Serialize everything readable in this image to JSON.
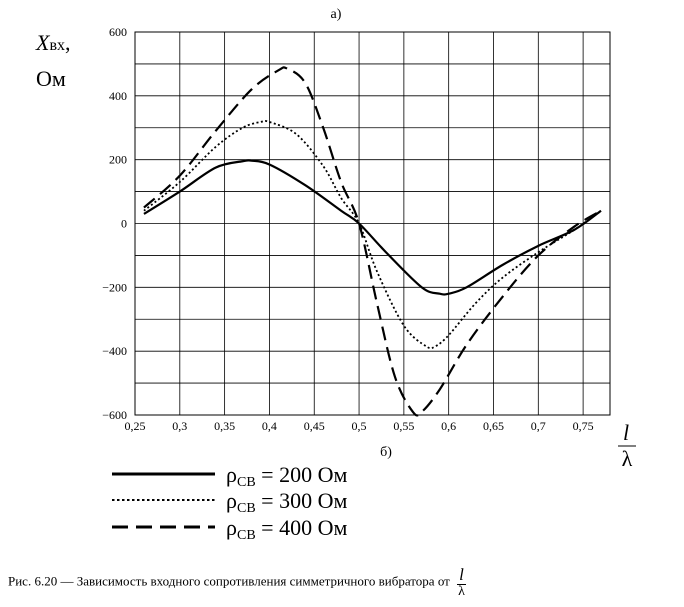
{
  "chart_data": {
    "type": "line",
    "panel_top_label": "а)",
    "panel_bottom_label": "б)",
    "ylabel_main": "X",
    "ylabel_sub": "вх",
    "ylabel_sep": ",",
    "ylabel_unit": "Ом",
    "xlabel_num": "l",
    "xlabel_den": "λ",
    "xlim": [
      0.25,
      0.78
    ],
    "ylim": [
      -600,
      600
    ],
    "x_ticks": [
      "0,25",
      "0,3",
      "0,35",
      "0,4",
      "0,45",
      "0,5",
      "0,55",
      "0,6",
      "0,65",
      "0,7",
      "0,75"
    ],
    "x_tick_values": [
      0.25,
      0.3,
      0.35,
      0.4,
      0.45,
      0.5,
      0.55,
      0.6,
      0.65,
      0.7,
      0.75
    ],
    "y_ticks": [
      "600",
      "400",
      "200",
      "0",
      "−200",
      "−400",
      "−600"
    ],
    "y_tick_values": [
      600,
      400,
      200,
      0,
      -200,
      -400,
      -600
    ],
    "grid": true,
    "legend_position": "bottom-left",
    "series": [
      {
        "name": "ρ",
        "name_sub": "СВ",
        "name_rest": " = 200 Ом",
        "style": "solid",
        "x": [
          0.26,
          0.3,
          0.34,
          0.37,
          0.38,
          0.4,
          0.44,
          0.48,
          0.5,
          0.53,
          0.57,
          0.59,
          0.6,
          0.62,
          0.66,
          0.7,
          0.74,
          0.77
        ],
        "y": [
          30,
          100,
          175,
          195,
          197,
          185,
          120,
          40,
          0,
          -90,
          -200,
          -220,
          -220,
          -200,
          -130,
          -70,
          -20,
          40
        ]
      },
      {
        "name": "ρ",
        "name_sub": "СВ",
        "name_rest": " = 300 Ом",
        "style": "dotted",
        "x": [
          0.26,
          0.3,
          0.34,
          0.37,
          0.39,
          0.4,
          0.43,
          0.46,
          0.48,
          0.5,
          0.52,
          0.55,
          0.575,
          0.585,
          0.6,
          0.63,
          0.66,
          0.7,
          0.74,
          0.77
        ],
        "y": [
          40,
          130,
          240,
          300,
          318,
          318,
          280,
          180,
          80,
          0,
          -150,
          -320,
          -385,
          -385,
          -350,
          -250,
          -170,
          -90,
          -20,
          40
        ]
      },
      {
        "name": "ρ",
        "name_sub": "СВ",
        "name_rest": " = 400 Ом",
        "style": "dashed",
        "x": [
          0.26,
          0.3,
          0.34,
          0.38,
          0.41,
          0.42,
          0.44,
          0.46,
          0.48,
          0.5,
          0.52,
          0.54,
          0.56,
          0.57,
          0.59,
          0.62,
          0.66,
          0.7,
          0.74,
          0.77
        ],
        "y": [
          50,
          150,
          290,
          420,
          480,
          485,
          440,
          300,
          130,
          0,
          -250,
          -480,
          -590,
          -590,
          -520,
          -380,
          -230,
          -100,
          -10,
          40
        ]
      }
    ]
  },
  "caption": {
    "text": "Рис. 6.20 — Зависимость входного сопротивления симметричного вибратора от",
    "frac_num": "l",
    "frac_den": "λ"
  }
}
